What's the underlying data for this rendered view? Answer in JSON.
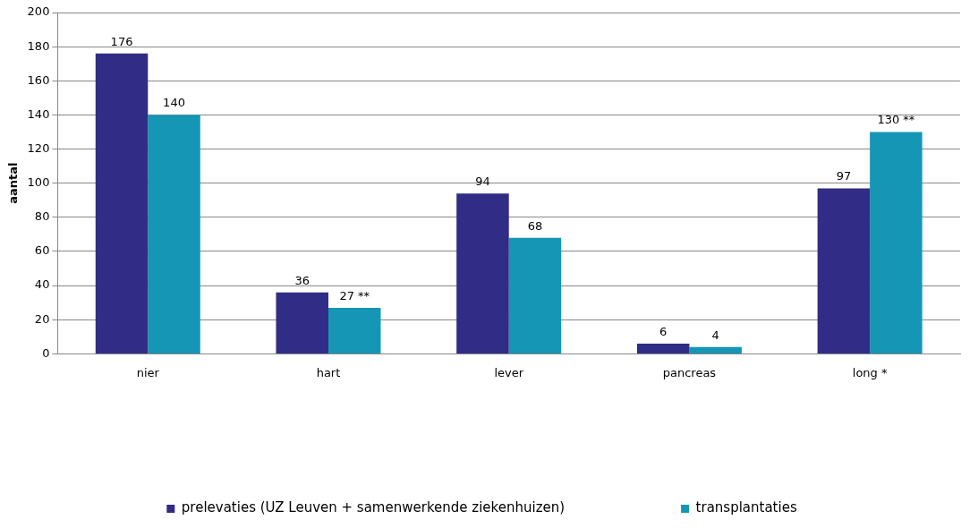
{
  "chart_data": {
    "type": "bar",
    "ylabel": "aantal",
    "categories": [
      "nier",
      "hart",
      "lever",
      "pancreas",
      "long *"
    ],
    "series": [
      {
        "name": "prelevaties (UZ Leuven + samenwerkende ziekenhuizen)",
        "color": "#312c85",
        "values": [
          176,
          36,
          94,
          6,
          97
        ],
        "value_labels": [
          "176",
          "36",
          "94",
          "6",
          "97"
        ]
      },
      {
        "name": "transplantaties",
        "color": "#1496b4",
        "values": [
          140,
          27,
          68,
          4,
          130
        ],
        "value_labels": [
          "140",
          "27 **",
          "68",
          "4",
          "130 **"
        ]
      }
    ],
    "ylim": [
      0,
      200
    ],
    "yticks": [
      0,
      20,
      40,
      60,
      80,
      100,
      120,
      140,
      160,
      180,
      200
    ],
    "grid": "y",
    "legend": "bottom"
  }
}
